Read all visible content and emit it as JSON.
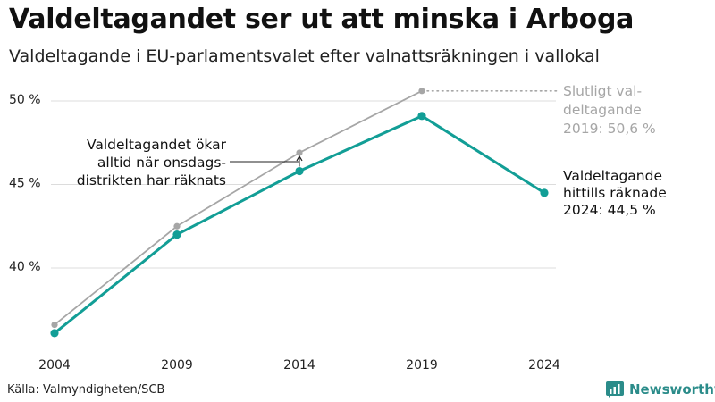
{
  "title": "Valdeltagandet ser ut att minska i Arboga",
  "subtitle": "Valdeltagande i EU-parlamentsvalet efter valnattsräkningen i vallokal",
  "source": "Källa: Valmyndigheten/SCB",
  "brand": "Newsworthy",
  "colors": {
    "preliminary": "#129e96",
    "final": "#a6a6a6",
    "grid": "#dcdcdc",
    "brand": "#2b8c8a"
  },
  "chart_data": {
    "type": "line",
    "x": [
      2004,
      2009,
      2014,
      2019,
      2024
    ],
    "xlabels": [
      "2004",
      "2009",
      "2014",
      "2019",
      "2024"
    ],
    "ylim": [
      35,
      51
    ],
    "yticks": [
      40,
      45,
      50
    ],
    "ytick_labels": [
      "40 %",
      "45 %",
      "50 %"
    ],
    "series": [
      {
        "name": "Slutligt valdeltagande",
        "color": "#a6a6a6",
        "x": [
          2004,
          2009,
          2014,
          2019
        ],
        "values": [
          36.6,
          42.5,
          46.9,
          50.6
        ]
      },
      {
        "name": "Valdeltagande efter valnattsräkningen",
        "color": "#129e96",
        "x": [
          2004,
          2009,
          2014,
          2019,
          2024
        ],
        "values": [
          36.1,
          42.0,
          45.8,
          49.1,
          44.5
        ]
      }
    ],
    "annotations": [
      {
        "id": "final",
        "lines": [
          "Slutligt val-",
          "deltagande",
          "2019: 50,6 %"
        ],
        "color": "#a6a6a6",
        "target": [
          2019,
          50.6
        ]
      },
      {
        "id": "current",
        "lines": [
          "Valdeltagande",
          "hittills räknade",
          "2024: 44,5 %"
        ],
        "color": "#111111"
      },
      {
        "id": "gap",
        "lines": [
          "Valdeltagandet ökar",
          "alltid när onsdags-",
          "distrikten har räknats"
        ],
        "color": "#111111",
        "target": [
          2014,
          46.9
        ],
        "base": [
          2014,
          45.8
        ]
      }
    ]
  }
}
